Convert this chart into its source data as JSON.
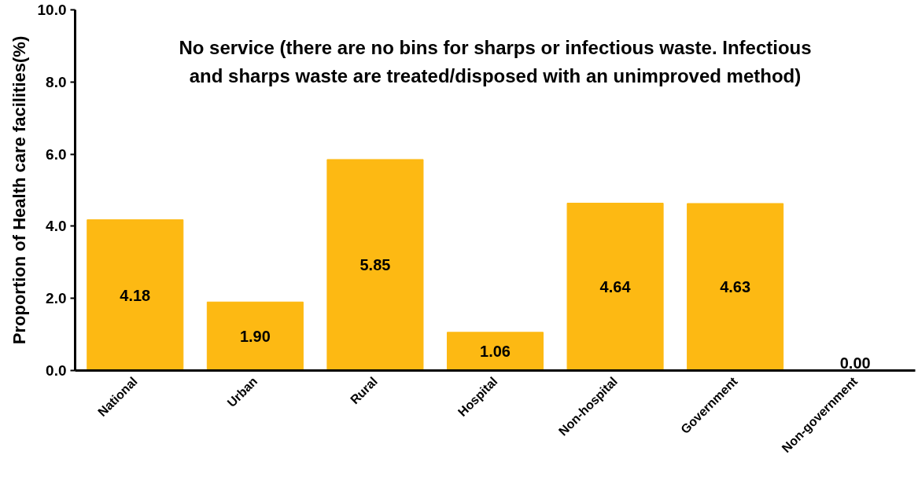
{
  "chart_data": {
    "type": "bar",
    "title": "No service (there are no bins for sharps or infectious waste. Infectious and sharps waste are treated/disposed with an unimproved method)",
    "ylabel": "Proportion of Health care facilities(%)",
    "categories": [
      "National",
      "Urban",
      "Rural",
      "Hospital",
      "Non-hospital",
      "Government",
      "Non-government"
    ],
    "values": [
      4.18,
      1.9,
      5.85,
      1.06,
      4.64,
      4.63,
      0.0
    ],
    "value_labels": [
      "4.18",
      "1.90",
      "5.85",
      "1.06",
      "4.64",
      "4.63",
      "0.00"
    ],
    "color": "#fdb913",
    "ylim": [
      0,
      10
    ],
    "yticks": [
      {
        "value": 0,
        "label": "0.0"
      },
      {
        "value": 2,
        "label": "2.0"
      },
      {
        "value": 4,
        "label": "4.0"
      },
      {
        "value": 6,
        "label": "6.0"
      },
      {
        "value": 8,
        "label": "8.0"
      },
      {
        "value": 10,
        "label": "10.0"
      }
    ],
    "grid": false
  }
}
